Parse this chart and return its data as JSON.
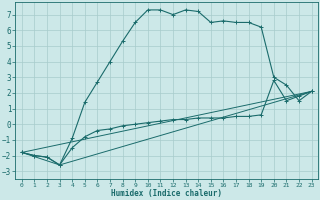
{
  "xlabel": "Humidex (Indice chaleur)",
  "xlim": [
    -0.5,
    23.5
  ],
  "ylim": [
    -3.5,
    7.8
  ],
  "xticks": [
    0,
    1,
    2,
    3,
    4,
    5,
    6,
    7,
    8,
    9,
    10,
    11,
    12,
    13,
    14,
    15,
    16,
    17,
    18,
    19,
    20,
    21,
    22,
    23
  ],
  "yticks": [
    -3,
    -2,
    -1,
    0,
    1,
    2,
    3,
    4,
    5,
    6,
    7
  ],
  "bg_color": "#cce8e8",
  "grid_color": "#a8cccc",
  "line_color": "#1a6b6b",
  "line1_x": [
    0,
    1,
    2,
    3,
    4,
    5,
    6,
    7,
    8,
    9,
    10,
    11,
    12,
    13,
    14,
    15,
    16,
    17,
    18,
    19,
    20,
    21,
    22,
    23
  ],
  "line1_y": [
    -1.8,
    -2.0,
    -2.1,
    -2.6,
    -0.9,
    1.4,
    2.7,
    4.0,
    5.3,
    6.5,
    7.3,
    7.3,
    7.0,
    7.3,
    7.2,
    6.5,
    6.6,
    6.5,
    6.5,
    6.2,
    3.0,
    2.5,
    1.5,
    2.1
  ],
  "line2_x": [
    0,
    1,
    2,
    3,
    4,
    5,
    6,
    7,
    8,
    9,
    10,
    11,
    12,
    13,
    14,
    15,
    16,
    17,
    18,
    19,
    20,
    21,
    22,
    23
  ],
  "line2_y": [
    -1.8,
    -2.0,
    -2.1,
    -2.6,
    -1.5,
    -0.8,
    -0.4,
    -0.3,
    -0.1,
    0.0,
    0.1,
    0.2,
    0.3,
    0.3,
    0.4,
    0.4,
    0.4,
    0.5,
    0.5,
    0.6,
    2.8,
    1.5,
    1.8,
    2.1
  ],
  "line3_x": [
    0,
    23
  ],
  "line3_y": [
    -1.8,
    2.1
  ],
  "line4_x": [
    0,
    3,
    23
  ],
  "line4_y": [
    -1.8,
    -2.6,
    2.1
  ]
}
